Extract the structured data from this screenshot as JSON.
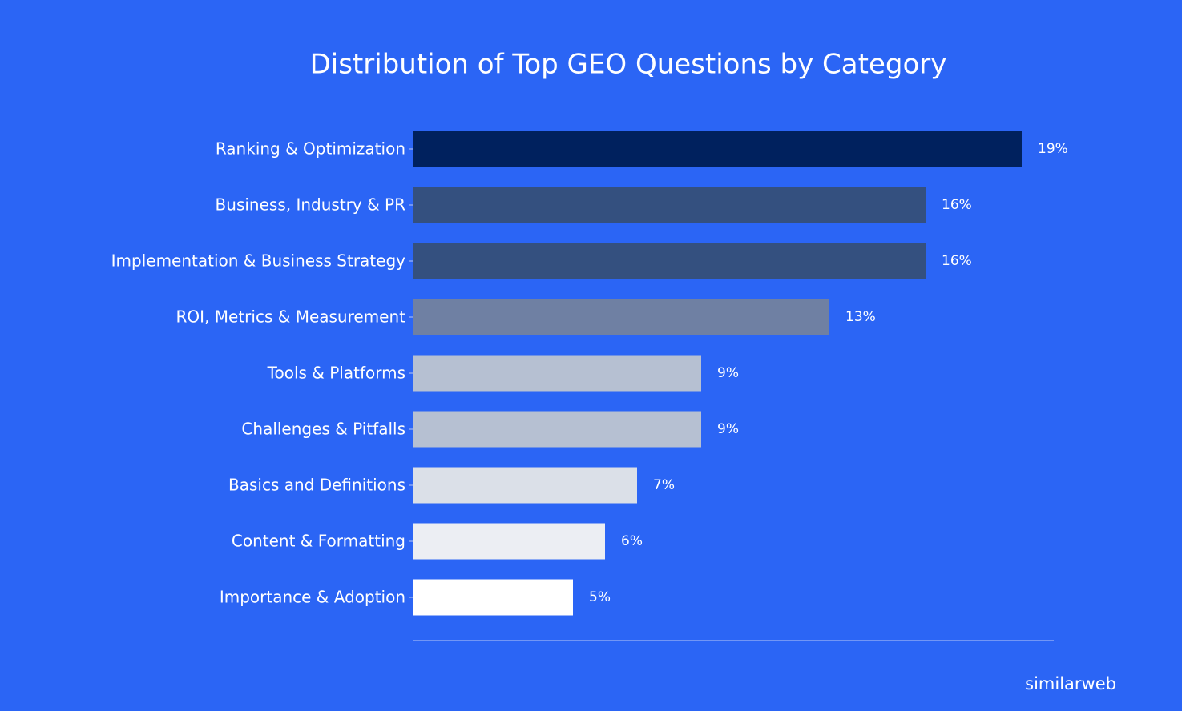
{
  "chart_data": {
    "type": "bar",
    "orientation": "horizontal",
    "title": "Distribution of Top GEO Questions by Category",
    "categories": [
      "Ranking & Optimization",
      "Business, Industry & PR",
      "Implementation & Business Strategy",
      "ROI, Metrics & Measurement",
      "Tools & Platforms",
      "Challenges & Pitfalls",
      "Basics and Definitions",
      "Content & Formatting",
      "Importance & Adoption"
    ],
    "values": [
      19,
      16,
      16,
      13,
      9,
      9,
      7,
      6,
      5
    ],
    "value_labels": [
      "19%",
      "16%",
      "16%",
      "13%",
      "9%",
      "9%",
      "7%",
      "6%",
      "5%"
    ],
    "colors": [
      "#00215e",
      "#34507f",
      "#34507f",
      "#6f80a3",
      "#b6c0d2",
      "#b6c0d2",
      "#dbe0e8",
      "#eceef3",
      "#ffffff"
    ],
    "xlim": [
      0,
      20
    ],
    "source": "similarweb"
  }
}
